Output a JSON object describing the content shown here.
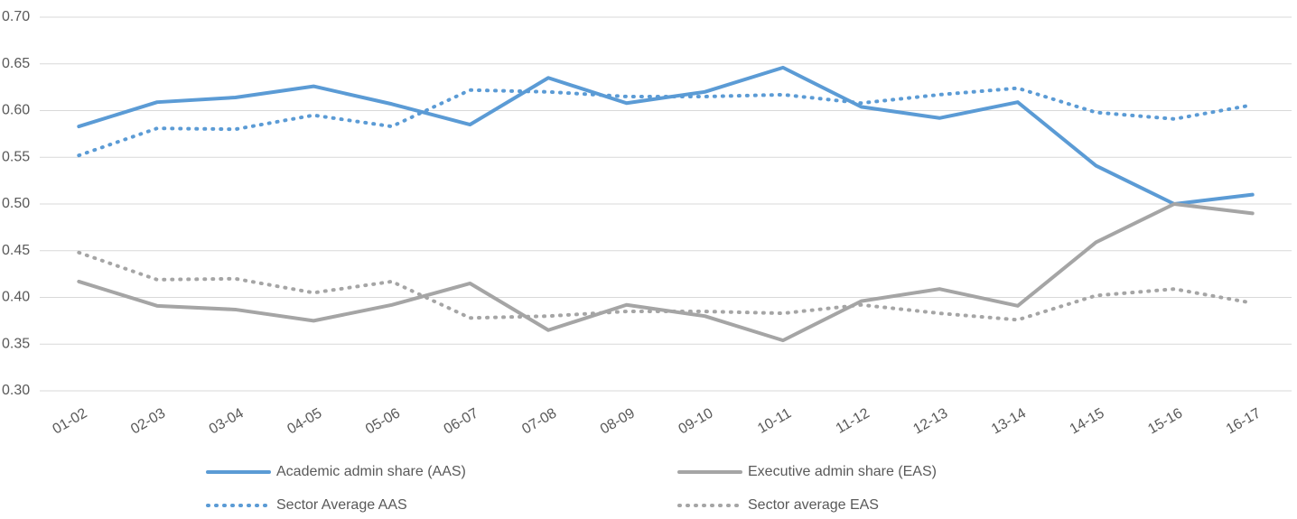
{
  "chart_data": {
    "type": "line",
    "categories": [
      "01-02",
      "02-03",
      "03-04",
      "04-05",
      "05-06",
      "06-07",
      "07-08",
      "08-09",
      "09-10",
      "10-11",
      "11-12",
      "12-13",
      "13-14",
      "14-15",
      "15-16",
      "16-17"
    ],
    "series": [
      {
        "name": "Academic admin share (AAS)",
        "color": "#5b9bd5",
        "dash": "solid",
        "values": [
          0.583,
          0.609,
          0.614,
          0.626,
          0.607,
          0.585,
          0.635,
          0.608,
          0.62,
          0.646,
          0.604,
          0.592,
          0.609,
          0.541,
          0.5,
          0.51
        ]
      },
      {
        "name": "Executive admin share (EAS)",
        "color": "#a5a5a5",
        "dash": "solid",
        "values": [
          0.417,
          0.391,
          0.387,
          0.375,
          0.392,
          0.415,
          0.365,
          0.392,
          0.38,
          0.354,
          0.396,
          0.409,
          0.391,
          0.459,
          0.5,
          0.49
        ]
      },
      {
        "name": "Sector Average AAS",
        "color": "#5b9bd5",
        "dash": "dotted",
        "values": [
          0.552,
          0.581,
          0.58,
          0.595,
          0.583,
          0.622,
          0.62,
          0.615,
          0.615,
          0.617,
          0.608,
          0.617,
          0.624,
          0.598,
          0.591,
          0.606
        ]
      },
      {
        "name": "Sector average EAS",
        "color": "#a5a5a5",
        "dash": "dotted",
        "values": [
          0.448,
          0.419,
          0.42,
          0.405,
          0.417,
          0.378,
          0.38,
          0.385,
          0.385,
          0.383,
          0.392,
          0.383,
          0.376,
          0.402,
          0.409,
          0.394
        ]
      }
    ],
    "ylim": [
      0.3,
      0.7
    ],
    "yticks": [
      {
        "value": 0.3,
        "label": "0.30"
      },
      {
        "value": 0.35,
        "label": "0.35"
      },
      {
        "value": 0.4,
        "label": "0.40"
      },
      {
        "value": 0.45,
        "label": "0.45"
      },
      {
        "value": 0.5,
        "label": "0.50"
      },
      {
        "value": 0.55,
        "label": "0.55"
      },
      {
        "value": 0.6,
        "label": "0.60"
      },
      {
        "value": 0.65,
        "label": "0.65"
      },
      {
        "value": 0.7,
        "label": "0.70"
      }
    ],
    "grid": true,
    "legend": "bottom"
  }
}
